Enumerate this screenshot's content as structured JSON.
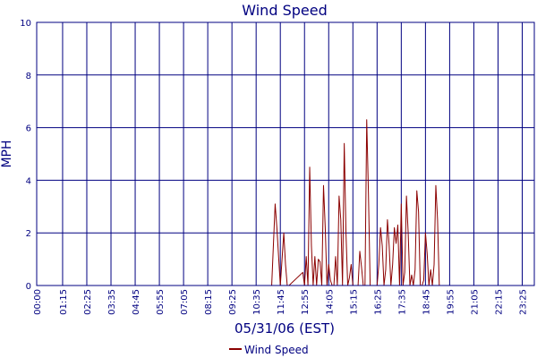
{
  "chart_data": {
    "type": "line",
    "title": "Wind Speed",
    "xlabel": "05/31/06 (EST)",
    "ylabel": "MPH",
    "ylim": [
      0,
      10
    ],
    "yticks": [
      "0",
      "2",
      "4",
      "6",
      "8",
      "10"
    ],
    "xticks": [
      "00:00",
      "01:15",
      "02:25",
      "03:35",
      "04:45",
      "05:55",
      "07:05",
      "08:15",
      "09:25",
      "10:35",
      "11:45",
      "12:55",
      "14:05",
      "15:15",
      "16:25",
      "17:35",
      "18:45",
      "19:55",
      "21:05",
      "22:15",
      "23:25"
    ],
    "grid": true,
    "legend_position": "bottom-center",
    "colors": {
      "series": "#8b0000",
      "grid": "#000080",
      "text": "#000080"
    },
    "series": [
      {
        "name": "Wind Speed",
        "x": [
          "00:00",
          "11:20",
          "11:30",
          "11:35",
          "11:45",
          "11:55",
          "12:00",
          "12:05",
          "12:10",
          "12:50",
          "12:55",
          "13:00",
          "13:05",
          "13:10",
          "13:15",
          "13:20",
          "13:25",
          "13:30",
          "13:35",
          "13:40",
          "13:45",
          "13:50",
          "13:55",
          "14:00",
          "14:05",
          "14:10",
          "14:15",
          "14:20",
          "14:25",
          "14:30",
          "14:35",
          "14:40",
          "14:45",
          "14:50",
          "14:55",
          "15:00",
          "15:05",
          "15:10",
          "15:15",
          "15:20",
          "15:25",
          "15:30",
          "15:35",
          "15:40",
          "15:45",
          "15:50",
          "15:55",
          "16:00",
          "16:05",
          "16:10",
          "16:15",
          "16:20",
          "16:25",
          "16:30",
          "16:35",
          "16:40",
          "16:45",
          "16:50",
          "16:55",
          "17:00",
          "17:05",
          "17:10",
          "17:15",
          "17:20",
          "17:25",
          "17:30",
          "17:35",
          "17:40",
          "17:45",
          "17:50",
          "17:55",
          "18:00",
          "18:05",
          "18:10",
          "18:15",
          "18:20",
          "18:25",
          "18:30",
          "18:35",
          "18:40",
          "18:45",
          "18:50",
          "18:55",
          "19:00",
          "19:05",
          "19:10",
          "19:15",
          "19:20",
          "19:25",
          "19:30",
          "19:35",
          "19:40",
          "19:45",
          "23:59"
        ],
        "values": [
          0,
          0,
          3.1,
          2.2,
          0,
          2,
          0.8,
          0,
          0,
          0.5,
          0,
          1.1,
          0,
          4.5,
          1.5,
          0,
          1.1,
          0,
          1,
          0.9,
          0,
          3.8,
          2.2,
          0,
          0.8,
          0.2,
          0,
          0,
          1.1,
          0,
          3.4,
          2.5,
          0,
          5.4,
          2,
          0,
          0.3,
          0.8,
          0,
          0,
          0,
          0,
          1.3,
          0.7,
          0,
          0,
          6.3,
          3.5,
          0,
          0,
          0,
          0,
          0,
          0.8,
          2.2,
          1.5,
          0,
          0.6,
          2.5,
          1.5,
          0,
          0.8,
          2.2,
          1.6,
          2.3,
          0,
          3.1,
          0,
          0.5,
          3.4,
          2,
          0,
          0.4,
          0,
          0.6,
          3.6,
          2.8,
          0,
          0,
          0.2,
          2,
          1.2,
          0,
          0.6,
          0,
          0.8,
          3.8,
          2.5,
          0,
          0,
          0,
          0,
          0,
          0
        ]
      }
    ]
  }
}
